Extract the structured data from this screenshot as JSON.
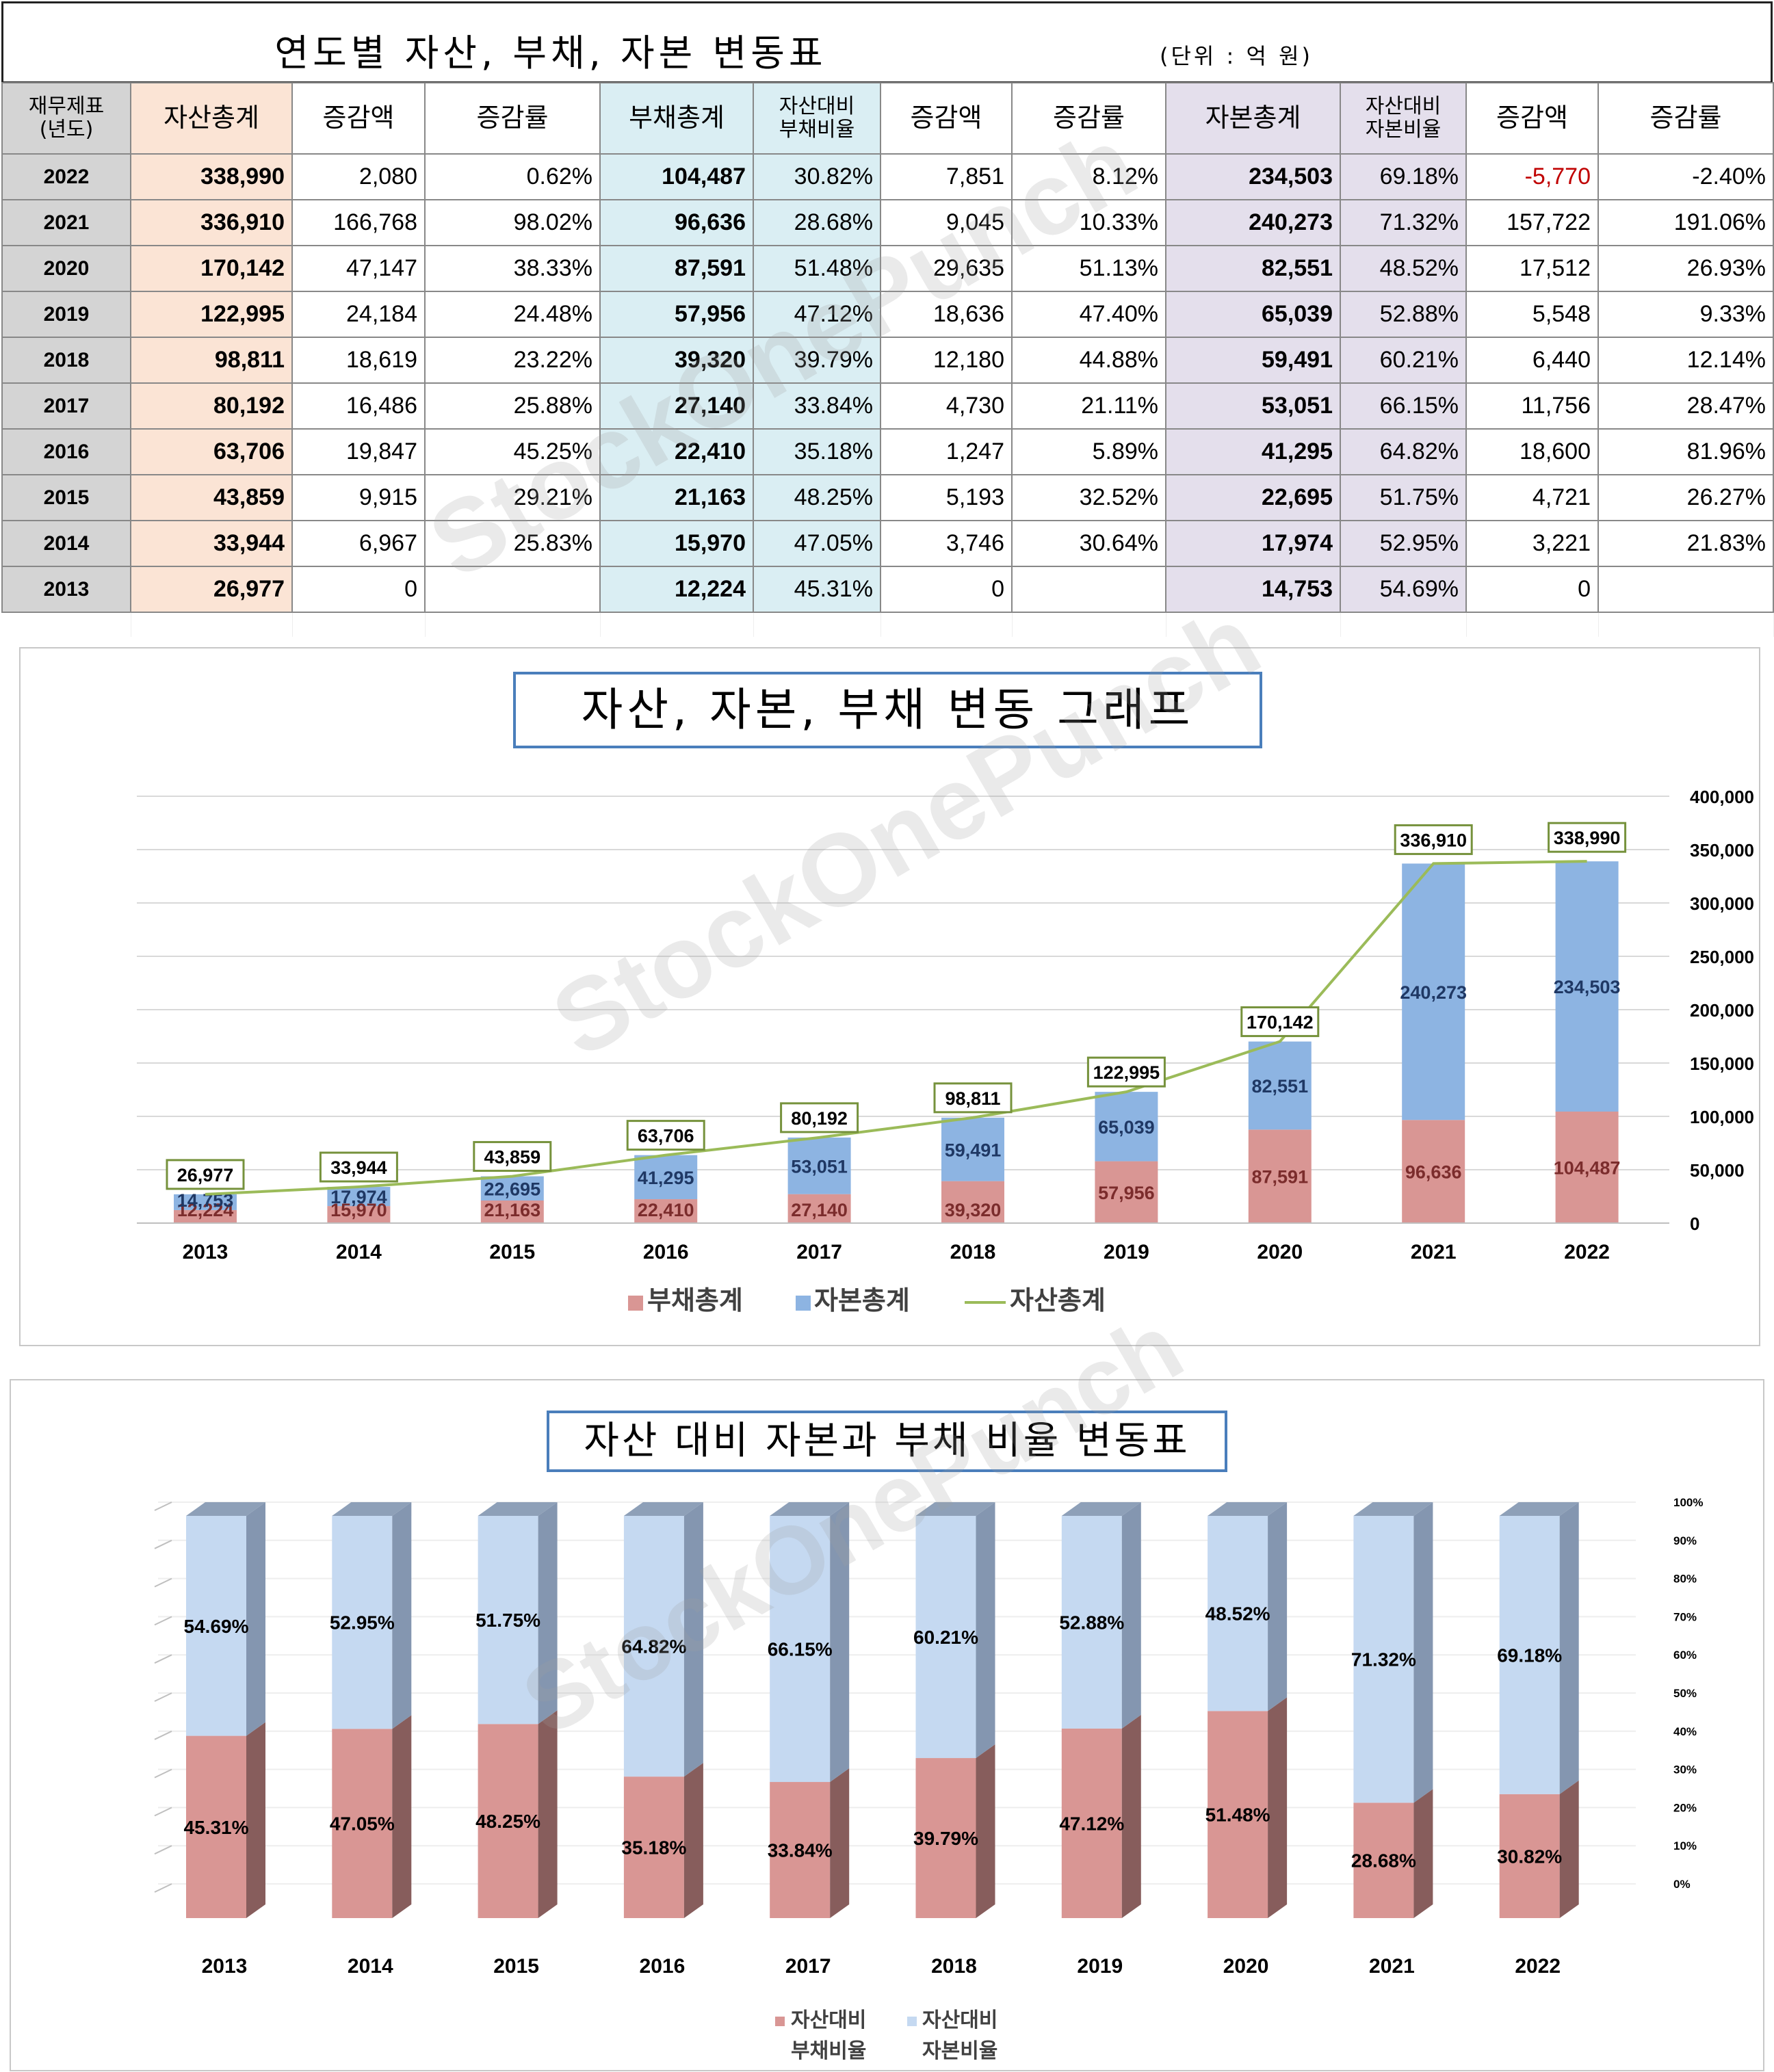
{
  "header": {
    "title": "연도별 자산, 부채, 자본 변동표",
    "unit": "(단위 : 억 원)"
  },
  "table": {
    "headers": [
      "재무제표\n(년도)",
      "자산총계",
      "증감액",
      "증감률",
      "부채총계",
      "자산대비\n부채비율",
      "증감액",
      "증감률",
      "자본총계",
      "자산대비\n자본비율",
      "증감액",
      "증감률"
    ],
    "rows": [
      [
        "2022",
        "338,990",
        "2,080",
        "0.62%",
        "104,487",
        "30.82%",
        "7,851",
        "8.12%",
        "234,503",
        "69.18%",
        "-5,770",
        "-2.40%"
      ],
      [
        "2021",
        "336,910",
        "166,768",
        "98.02%",
        "96,636",
        "28.68%",
        "9,045",
        "10.33%",
        "240,273",
        "71.32%",
        "157,722",
        "191.06%"
      ],
      [
        "2020",
        "170,142",
        "47,147",
        "38.33%",
        "87,591",
        "51.48%",
        "29,635",
        "51.13%",
        "82,551",
        "48.52%",
        "17,512",
        "26.93%"
      ],
      [
        "2019",
        "122,995",
        "24,184",
        "24.48%",
        "57,956",
        "47.12%",
        "18,636",
        "47.40%",
        "65,039",
        "52.88%",
        "5,548",
        "9.33%"
      ],
      [
        "2018",
        "98,811",
        "18,619",
        "23.22%",
        "39,320",
        "39.79%",
        "12,180",
        "44.88%",
        "59,491",
        "60.21%",
        "6,440",
        "12.14%"
      ],
      [
        "2017",
        "80,192",
        "16,486",
        "25.88%",
        "27,140",
        "33.84%",
        "4,730",
        "21.11%",
        "53,051",
        "66.15%",
        "11,756",
        "28.47%"
      ],
      [
        "2016",
        "63,706",
        "19,847",
        "45.25%",
        "22,410",
        "35.18%",
        "1,247",
        "5.89%",
        "41,295",
        "64.82%",
        "18,600",
        "81.96%"
      ],
      [
        "2015",
        "43,859",
        "9,915",
        "29.21%",
        "21,163",
        "48.25%",
        "5,193",
        "32.52%",
        "22,695",
        "51.75%",
        "4,721",
        "26.27%"
      ],
      [
        "2014",
        "33,944",
        "6,967",
        "25.83%",
        "15,970",
        "47.05%",
        "3,746",
        "30.64%",
        "17,974",
        "52.95%",
        "3,221",
        "21.83%"
      ],
      [
        "2013",
        "26,977",
        "0",
        "",
        "12,224",
        "45.31%",
        "0",
        "",
        "14,753",
        "54.69%",
        "0",
        ""
      ]
    ],
    "negative_color": "#c00000"
  },
  "watermark": "StockOnePunch",
  "chart_data": [
    {
      "type": "bar",
      "title": "자산, 자본, 부채 변동 그래프",
      "stacked": true,
      "categories": [
        "2013",
        "2014",
        "2015",
        "2016",
        "2017",
        "2018",
        "2019",
        "2020",
        "2021",
        "2022"
      ],
      "series": [
        {
          "name": "부채총계",
          "kind": "bar",
          "color": "#d99694",
          "values": [
            12224,
            15970,
            21163,
            22410,
            27140,
            39320,
            57956,
            87591,
            96636,
            104487
          ]
        },
        {
          "name": "자본총계",
          "kind": "bar",
          "color": "#8db4e2",
          "values": [
            14753,
            17974,
            22695,
            41295,
            53051,
            59491,
            65039,
            82551,
            240273,
            234503
          ]
        },
        {
          "name": "자산총계",
          "kind": "line",
          "color": "#9bbb59",
          "values": [
            26977,
            33944,
            43859,
            63706,
            80192,
            98811,
            122995,
            170142,
            336910,
            338990
          ]
        }
      ],
      "ylim": [
        0,
        400000
      ],
      "yticks": [
        "0",
        "50,000",
        "100,000",
        "150,000",
        "200,000",
        "250,000",
        "300,000",
        "350,000",
        "400,000"
      ],
      "y_axis_side": "right",
      "grid": true,
      "legend": "bottom"
    },
    {
      "type": "bar",
      "title": "자산 대비 자본과 부채 비율 변동표",
      "stacked": true,
      "percent": true,
      "categories": [
        "2013",
        "2014",
        "2015",
        "2016",
        "2017",
        "2018",
        "2019",
        "2020",
        "2021",
        "2022"
      ],
      "series": [
        {
          "name": "자산대비 부채비율",
          "color": "#d99694",
          "values": [
            45.31,
            47.05,
            48.25,
            35.18,
            33.84,
            39.79,
            47.12,
            51.48,
            28.68,
            30.82
          ]
        },
        {
          "name": "자산대비 자본비율",
          "color": "#c5d9f1",
          "values": [
            54.69,
            52.95,
            51.75,
            64.82,
            66.15,
            60.21,
            52.88,
            48.52,
            71.32,
            69.18
          ]
        }
      ],
      "ylim": [
        0,
        100
      ],
      "yticks": [
        "0%",
        "10%",
        "20%",
        "30%",
        "40%",
        "50%",
        "60%",
        "70%",
        "80%",
        "90%",
        "100%"
      ],
      "y_axis_side": "right",
      "legend": "bottom"
    }
  ]
}
